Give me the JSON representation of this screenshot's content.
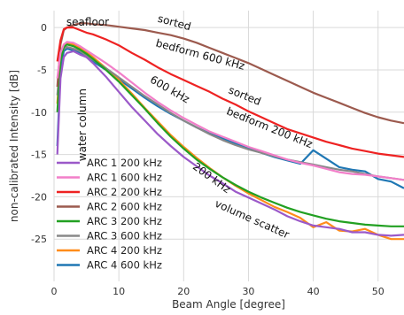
{
  "chart_data": {
    "type": "line",
    "xlabel": "Beam Angle [degree]",
    "ylabel": "non-calibrated Intensity [dB]",
    "xlim": [
      0,
      54
    ],
    "ylim": [
      -30,
      2
    ],
    "xticks": [
      0,
      10,
      20,
      30,
      40,
      50
    ],
    "yticks": [
      0,
      -5,
      -10,
      -15,
      -20,
      -25
    ],
    "grid": true,
    "legend_position": "bottom-left",
    "series": [
      {
        "name": "ARC 1 200 kHz",
        "color": "#9b59c9",
        "x": [
          0.5,
          1,
          1.5,
          2,
          3,
          4,
          5,
          6,
          8,
          10,
          12,
          14,
          16,
          18,
          20,
          22,
          24,
          26,
          28,
          30,
          32,
          34,
          36,
          38,
          40,
          42,
          44,
          46,
          48,
          50,
          52,
          54
        ],
        "y": [
          -15,
          -6,
          -3.5,
          -3,
          -2.8,
          -3.2,
          -3.5,
          -4.2,
          -5.8,
          -7.6,
          -9.4,
          -11,
          -12.6,
          -14,
          -15.3,
          -16.4,
          -17.5,
          -18.4,
          -19.4,
          -20.1,
          -20.8,
          -21.5,
          -22.3,
          -22.9,
          -23.4,
          -23.6,
          -23.8,
          -24.2,
          -24.2,
          -24.5,
          -24.6,
          -24.5
        ]
      },
      {
        "name": "ARC 1 600 kHz",
        "color": "#f27fc9",
        "x": [
          0.5,
          1,
          1.5,
          2,
          3,
          4,
          5,
          6,
          8,
          10,
          12,
          14,
          16,
          18,
          20,
          22,
          24,
          26,
          28,
          30,
          32,
          34,
          36,
          38,
          40,
          42,
          44,
          46,
          48,
          50,
          52,
          54
        ],
        "y": [
          -6,
          -3,
          -2,
          -1.7,
          -1.8,
          -2.2,
          -2.7,
          -3.2,
          -4.2,
          -5.3,
          -6.5,
          -7.7,
          -8.8,
          -9.8,
          -10.7,
          -11.5,
          -12.3,
          -12.9,
          -13.5,
          -14.1,
          -14.6,
          -15.1,
          -15.6,
          -16,
          -16.3,
          -16.7,
          -17.1,
          -17.3,
          -17.4,
          -17.6,
          -17.8,
          -18
        ]
      },
      {
        "name": "ARC 2 200 kHz",
        "color": "#ee2222",
        "x": [
          0.5,
          1,
          1.5,
          2,
          3,
          4,
          5,
          6,
          8,
          10,
          12,
          14,
          16,
          18,
          20,
          22,
          24,
          26,
          28,
          30,
          32,
          34,
          36,
          38,
          40,
          42,
          44,
          46,
          48,
          50,
          52,
          54
        ],
        "y": [
          -4,
          -1.5,
          -0.2,
          0,
          0,
          -0.3,
          -0.6,
          -0.8,
          -1.4,
          -2.1,
          -3,
          -3.8,
          -4.7,
          -5.5,
          -6.2,
          -6.9,
          -7.6,
          -8.4,
          -9.1,
          -9.9,
          -10.6,
          -11.3,
          -12,
          -12.5,
          -13,
          -13.5,
          -13.9,
          -14.3,
          -14.6,
          -14.9,
          -15.1,
          -15.3
        ]
      },
      {
        "name": "ARC 2 600 kHz",
        "color": "#9c5a4e",
        "x": [
          0.5,
          1,
          1.5,
          2,
          3,
          4,
          5,
          6,
          8,
          10,
          12,
          14,
          16,
          18,
          20,
          22,
          24,
          26,
          28,
          30,
          32,
          34,
          36,
          38,
          40,
          42,
          44,
          46,
          48,
          50,
          52,
          54
        ],
        "y": [
          -7,
          -2,
          -0.3,
          0,
          0.3,
          0.5,
          0.5,
          0.4,
          0.3,
          0.1,
          -0.1,
          -0.3,
          -0.6,
          -0.9,
          -1.3,
          -1.8,
          -2.4,
          -3,
          -3.6,
          -4.2,
          -4.9,
          -5.6,
          -6.3,
          -7,
          -7.7,
          -8.3,
          -8.9,
          -9.5,
          -10.1,
          -10.6,
          -11,
          -11.3
        ]
      },
      {
        "name": "ARC 3 200 kHz",
        "color": "#22a022",
        "x": [
          0.5,
          1,
          1.5,
          2,
          3,
          4,
          5,
          6,
          8,
          10,
          12,
          14,
          16,
          18,
          20,
          22,
          24,
          26,
          28,
          30,
          32,
          34,
          36,
          38,
          40,
          42,
          44,
          46,
          48,
          50,
          52,
          54
        ],
        "y": [
          -10,
          -4,
          -2.3,
          -2,
          -2.2,
          -2.6,
          -3.1,
          -3.7,
          -5,
          -6.4,
          -8,
          -9.6,
          -11.3,
          -12.9,
          -14.3,
          -15.6,
          -16.7,
          -17.7,
          -18.6,
          -19.4,
          -20.1,
          -20.7,
          -21.3,
          -21.8,
          -22.2,
          -22.6,
          -22.9,
          -23.1,
          -23.3,
          -23.4,
          -23.5,
          -23.5
        ]
      },
      {
        "name": "ARC 3 600 kHz",
        "color": "#888888",
        "x": [
          0.5,
          1,
          1.5,
          2,
          3,
          4,
          5,
          6,
          8,
          10,
          12,
          14,
          16,
          18,
          20,
          22,
          24,
          26,
          28,
          30,
          32,
          34,
          36,
          38,
          40,
          42,
          44,
          46,
          48,
          50,
          52,
          54
        ],
        "y": [
          -8,
          -3.5,
          -2.5,
          -2.3,
          -2.5,
          -2.8,
          -3.3,
          -3.8,
          -4.8,
          -5.9,
          -7,
          -8.1,
          -9.1,
          -10.1,
          -11,
          -11.8,
          -12.6,
          -13.3,
          -13.9,
          -14.4,
          -14.8,
          -15.2,
          -15.6,
          -15.9,
          -16.2,
          -16.5,
          -16.8,
          -17,
          -17.3,
          -17.6,
          -17.8,
          -18
        ]
      },
      {
        "name": "ARC 4 200 kHz",
        "color": "#ff8c1a",
        "x": [
          0.5,
          1,
          1.5,
          2,
          3,
          4,
          5,
          6,
          8,
          10,
          12,
          14,
          16,
          18,
          20,
          22,
          24,
          26,
          28,
          30,
          32,
          34,
          36,
          38,
          40,
          42,
          44,
          46,
          48,
          50,
          52,
          54
        ],
        "y": [
          -9,
          -3.5,
          -2,
          -1.8,
          -2,
          -2.4,
          -2.9,
          -3.5,
          -4.8,
          -6.2,
          -7.8,
          -9.5,
          -11.1,
          -12.7,
          -14.1,
          -15.4,
          -16.6,
          -17.7,
          -18.7,
          -19.6,
          -20.4,
          -21.2,
          -21.8,
          -22.5,
          -23.6,
          -23,
          -24,
          -24.1,
          -23.8,
          -24.5,
          -25,
          -25
        ]
      },
      {
        "name": "ARC 4 600 kHz",
        "color": "#1f77b4",
        "x": [
          0.5,
          1,
          1.5,
          2,
          3,
          4,
          5,
          6,
          8,
          10,
          12,
          14,
          16,
          18,
          20,
          22,
          24,
          26,
          28,
          30,
          32,
          34,
          36,
          38,
          40,
          42,
          44,
          46,
          48,
          50,
          52,
          54
        ],
        "y": [
          -14,
          -5,
          -2.8,
          -2.5,
          -2.7,
          -3,
          -3.5,
          -4,
          -5,
          -6.1,
          -7.2,
          -8.3,
          -9.3,
          -10.2,
          -11,
          -11.8,
          -12.5,
          -13.1,
          -13.7,
          -14.3,
          -14.8,
          -15.3,
          -15.7,
          -16.1,
          -14.5,
          -15.5,
          -16.5,
          -16.8,
          -17,
          -17.9,
          -18.2,
          -19
        ]
      }
    ],
    "annotations": [
      {
        "text": "seafloor",
        "x": 1.9,
        "y": 0.2,
        "angle": 0
      },
      {
        "text": "sorted",
        "x": 15.9,
        "y": 0.7,
        "angle": 15
      },
      {
        "text": "bedform 600 kHz",
        "x": 15.6,
        "y": -2.2,
        "angle": 15
      },
      {
        "text": "water column",
        "x": 4.9,
        "y": -15.8,
        "angle": -90
      },
      {
        "text": "600 kHz",
        "x": 14.7,
        "y": -6.4,
        "angle": 30
      },
      {
        "text": "sorted",
        "x": 26.8,
        "y": -7.7,
        "angle": 22
      },
      {
        "text": "bedform 200 kHz",
        "x": 26.5,
        "y": -10.2,
        "angle": 22
      },
      {
        "text": "200 kHz",
        "x": 21.3,
        "y": -16.6,
        "angle": 36
      },
      {
        "text": "volume scatter",
        "x": 24.7,
        "y": -21.1,
        "angle": 24
      }
    ]
  }
}
